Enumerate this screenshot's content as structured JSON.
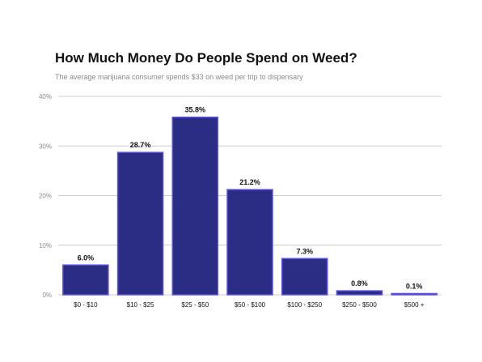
{
  "chart_data": {
    "type": "bar",
    "title": "How Much Money Do People Spend on Weed?",
    "subtitle": "The average marijuana consumer spends $33 on weed per trip to dispensary",
    "categories": [
      "$0 - $10",
      "$10 - $25",
      "$25 - $50",
      "$50 - $100",
      "$100 - $250",
      "$250 - $500",
      "$500 +"
    ],
    "values": [
      6.0,
      28.7,
      35.8,
      21.2,
      7.3,
      0.8,
      0.1
    ],
    "data_labels": [
      "6.0%",
      "28.7%",
      "35.8%",
      "21.2%",
      "7.3%",
      "0.8%",
      "0.1%"
    ],
    "ylim": [
      0,
      40
    ],
    "yticks": [
      0,
      10,
      20,
      30,
      40
    ],
    "ytick_labels": [
      "0%",
      "10%",
      "20%",
      "30%",
      "40%"
    ],
    "xlabel": "",
    "ylabel": "",
    "grid": true,
    "colors": {
      "bar_fill": "#2b2d84",
      "bar_stroke": "#5b4fe0",
      "grid": "#cccccc"
    }
  }
}
